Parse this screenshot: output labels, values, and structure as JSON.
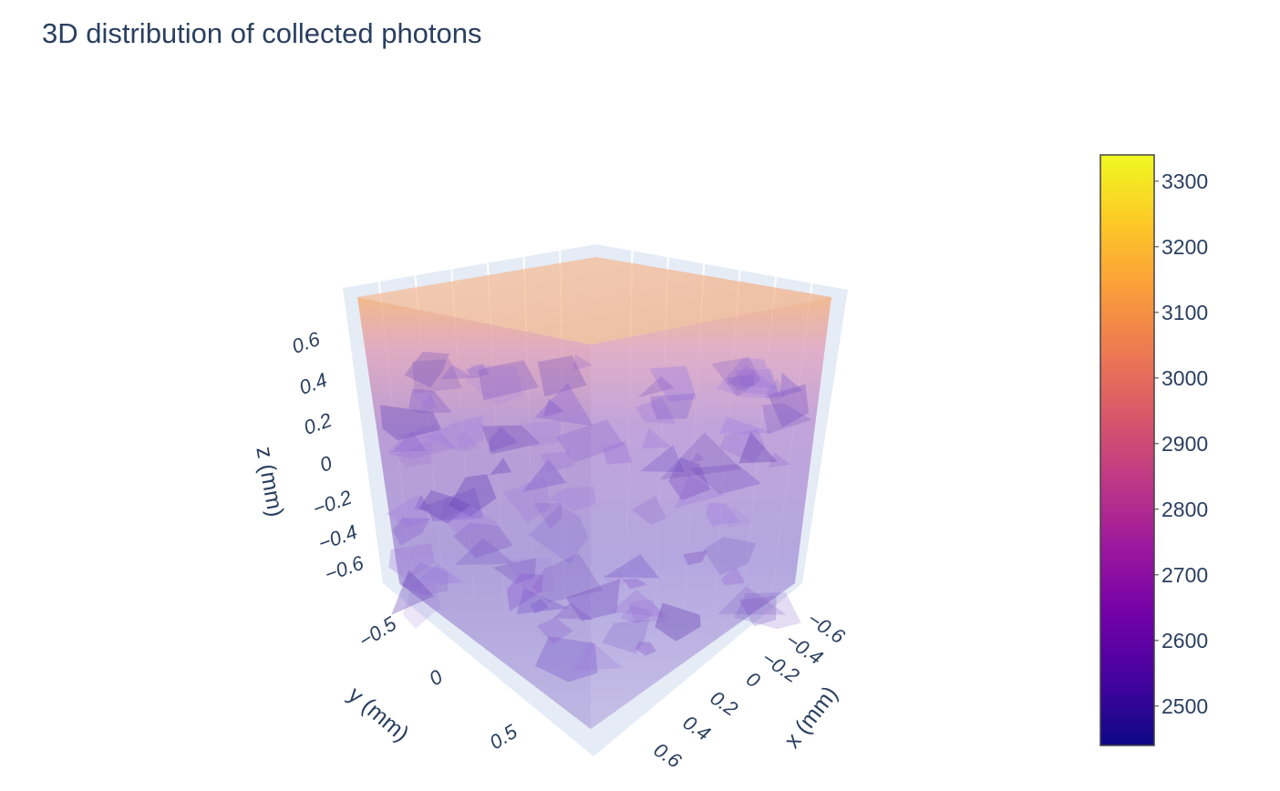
{
  "chart_data": {
    "type": "volume",
    "title": "3D distribution of collected photons",
    "axes": {
      "x": {
        "label": "x (mm)",
        "range": [
          -0.75,
          0.75
        ],
        "ticks": [
          "−0.6",
          "−0.4",
          "−0.2",
          "0",
          "0.2",
          "0.4",
          "0.6"
        ]
      },
      "y": {
        "label": "y (mm)",
        "range": [
          -0.75,
          0.75
        ],
        "ticks": [
          "−0.5",
          "0",
          "0.5"
        ]
      },
      "z": {
        "label": "z (mm)",
        "range": [
          -0.75,
          0.75
        ],
        "ticks": [
          "0.6",
          "0.4",
          "0.2",
          "0",
          "−0.2",
          "−0.4",
          "−0.6"
        ]
      }
    },
    "value_trend": {
      "description_levels_by_z": [
        {
          "z": 0.7,
          "value": 3150
        },
        {
          "z": 0.4,
          "value": 2850
        },
        {
          "z": 0.0,
          "value": 2700
        },
        {
          "z": -0.4,
          "value": 2650
        },
        {
          "z": -0.7,
          "value": 2620
        }
      ]
    },
    "colorbar": {
      "min": 2440,
      "max": 3340,
      "ticks": [
        "3300",
        "3200",
        "3100",
        "3000",
        "2900",
        "2800",
        "2700",
        "2600",
        "2500"
      ],
      "colorscale": [
        "#0d0887",
        "#46039f",
        "#7201a8",
        "#9c179e",
        "#bd3786",
        "#d8576b",
        "#ed7953",
        "#fb9f3a",
        "#fdca26",
        "#f0f921"
      ]
    },
    "opacity": 0.3
  }
}
